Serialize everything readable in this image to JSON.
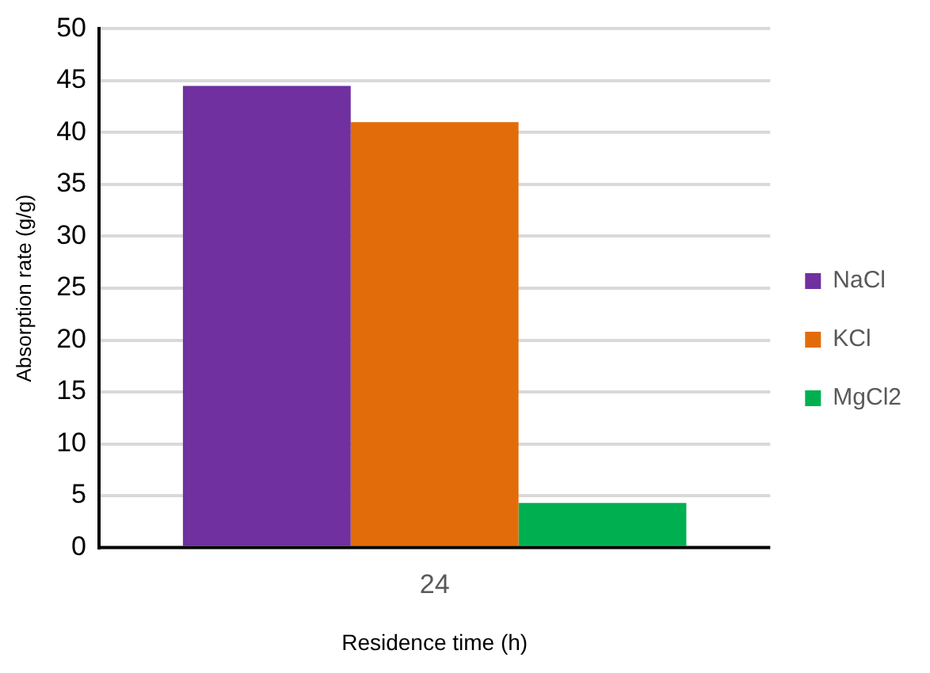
{
  "chart_data": {
    "type": "bar",
    "categories": [
      "24"
    ],
    "xlabel": "Residence time (h)",
    "ylabel": "Absorption rate (g/g)",
    "series": [
      {
        "name": "NaCl",
        "color": "#7030a0",
        "values": [
          44.5
        ]
      },
      {
        "name": "KCl",
        "color": "#e36c0a",
        "values": [
          41.0
        ]
      },
      {
        "name": "MgCl2",
        "color": "#00b050",
        "values": [
          4.3
        ]
      }
    ],
    "ylim": [
      0,
      50
    ],
    "yticks": [
      0,
      5,
      10,
      15,
      20,
      25,
      30,
      35,
      40,
      45,
      50
    ],
    "grid": "y",
    "legend": "right"
  }
}
